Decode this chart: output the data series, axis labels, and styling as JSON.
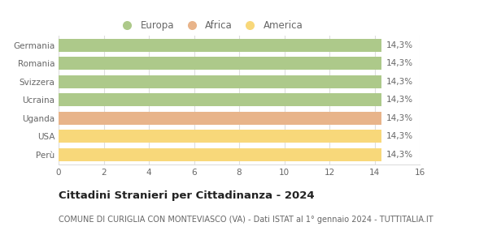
{
  "categories": [
    "Germania",
    "Romania",
    "Svizzera",
    "Ucraina",
    "Uganda",
    "USA",
    "Perù"
  ],
  "values": [
    14.3,
    14.3,
    14.3,
    14.3,
    14.3,
    14.3,
    14.3
  ],
  "bar_colors": [
    "#adc98a",
    "#adc98a",
    "#adc98a",
    "#adc98a",
    "#e8b48a",
    "#f8d87a",
    "#f8d87a"
  ],
  "legend_labels": [
    "Europa",
    "Africa",
    "America"
  ],
  "legend_colors": [
    "#adc98a",
    "#e8b48a",
    "#f8d87a"
  ],
  "bar_labels": [
    "14,3%",
    "14,3%",
    "14,3%",
    "14,3%",
    "14,3%",
    "14,3%",
    "14,3%"
  ],
  "xlim": [
    0,
    16
  ],
  "xticks": [
    0,
    2,
    4,
    6,
    8,
    10,
    12,
    14,
    16
  ],
  "title": "Cittadini Stranieri per Cittadinanza - 2024",
  "subtitle": "COMUNE DI CURIGLIA CON MONTEVIASCO (VA) - Dati ISTAT al 1° gennaio 2024 - TUTTITALIA.IT",
  "title_fontsize": 9.5,
  "subtitle_fontsize": 7,
  "label_fontsize": 7.5,
  "tick_fontsize": 7.5,
  "legend_fontsize": 8.5,
  "bg_color": "#ffffff",
  "bar_edge_color": "none",
  "grid_color": "#dddddd",
  "bar_height": 0.72,
  "text_color": "#666666",
  "title_color": "#222222"
}
